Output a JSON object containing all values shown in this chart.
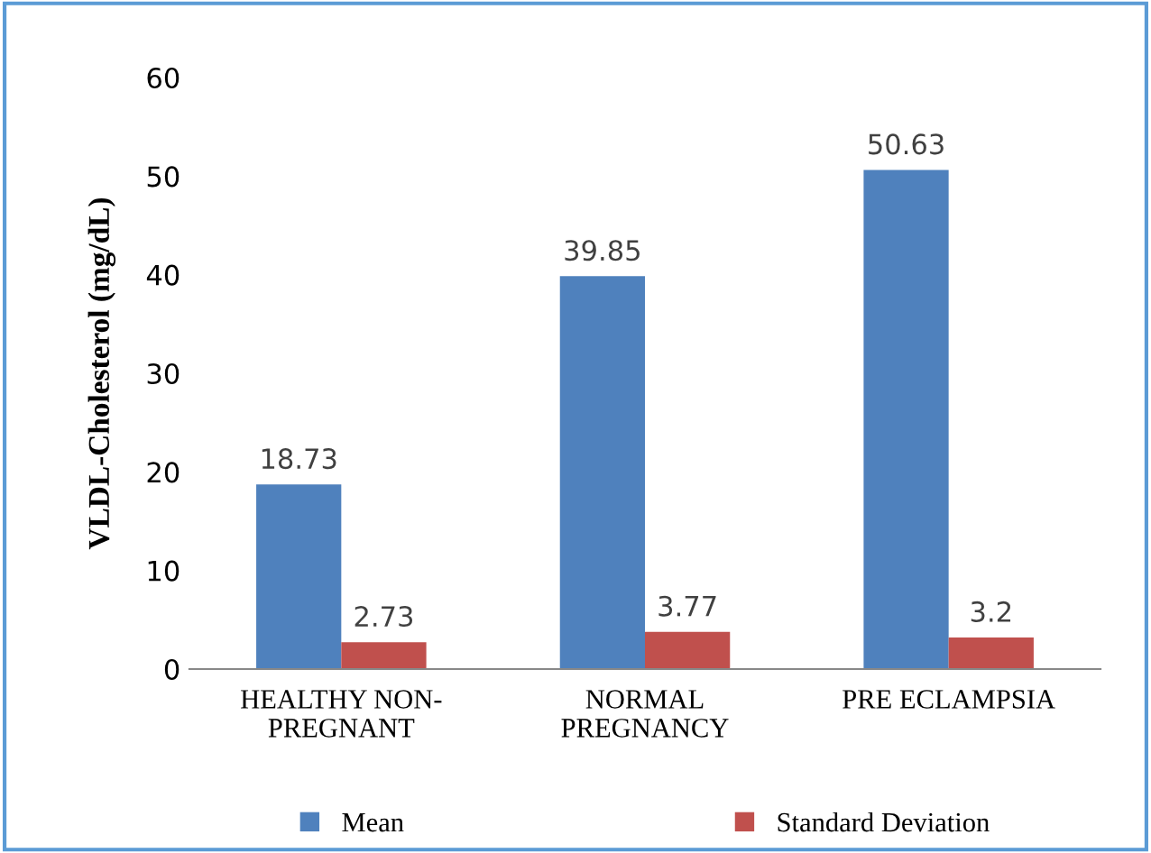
{
  "chart_data": {
    "type": "bar",
    "ylabel": "VLDL-Cholesterol (mg/dL)",
    "categories": [
      "HEALTHY NON-\nPREGNANT",
      "NORMAL\nPREGNANCY",
      "PRE ECLAMPSIA"
    ],
    "series": [
      {
        "name": "Mean",
        "color": "#4f81bd",
        "values": [
          18.73,
          39.85,
          50.63
        ]
      },
      {
        "name": "Standard Deviation",
        "color": "#c0504d",
        "values": [
          2.73,
          3.77,
          3.2
        ]
      }
    ],
    "ylim": [
      0,
      60
    ],
    "yticks": [
      0,
      10,
      20,
      30,
      40,
      50,
      60
    ],
    "data_labels": true,
    "grid": false,
    "legend": "bottom"
  }
}
